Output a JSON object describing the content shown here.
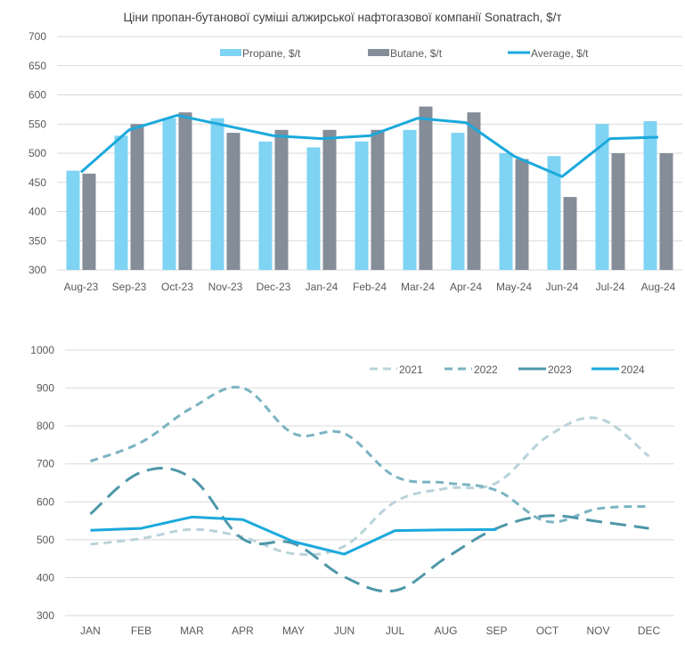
{
  "chart_data": [
    {
      "type": "bar",
      "title": "Ціни пропан-бутанової суміші алжирської нафтогазової компанії Sonatrach, $/т",
      "xlabel": "",
      "ylabel": "",
      "ylim": [
        300,
        700
      ],
      "yticks": [
        300,
        350,
        400,
        450,
        500,
        550,
        600,
        650,
        700
      ],
      "grid": true,
      "legend_position": "top",
      "categories": [
        "Aug-23",
        "Sep-23",
        "Oct-23",
        "Nov-23",
        "Dec-23",
        "Jan-24",
        "Feb-24",
        "Mar-24",
        "Apr-24",
        "May-24",
        "Jun-24",
        "Jul-24",
        "Aug-24"
      ],
      "series": [
        {
          "name": "Propane, $/t",
          "kind": "bar",
          "color": "#7fd3f3",
          "values": [
            470,
            530,
            560,
            560,
            520,
            510,
            520,
            540,
            535,
            500,
            495,
            550,
            555
          ]
        },
        {
          "name": "Butane, $/t",
          "kind": "bar",
          "color": "#848d98",
          "values": [
            465,
            550,
            570,
            535,
            540,
            540,
            540,
            580,
            570,
            490,
            425,
            500,
            500
          ]
        },
        {
          "name": "Average, $/t",
          "kind": "line",
          "color": "#1ba9dc",
          "values": [
            467.5,
            540,
            565,
            547.5,
            530,
            525,
            530,
            560,
            552.5,
            495,
            460,
            525,
            527.5
          ]
        }
      ]
    },
    {
      "type": "line",
      "title": "",
      "xlabel": "",
      "ylabel": "",
      "ylim": [
        300,
        1000
      ],
      "yticks": [
        300,
        400,
        500,
        600,
        700,
        800,
        900,
        1000
      ],
      "grid": true,
      "legend_position": "top-right",
      "categories": [
        "JAN",
        "FEB",
        "MAR",
        "APR",
        "MAY",
        "JUN",
        "JUL",
        "AUG",
        "SEP",
        "OCT",
        "NOV",
        "DEC"
      ],
      "series": [
        {
          "name": "2021",
          "style": "dashed",
          "color": "#b9d3da",
          "values": [
            488,
            503,
            527,
            507,
            463,
            483,
            600,
            635,
            650,
            772,
            820,
            720
          ]
        },
        {
          "name": "2022",
          "style": "dashed",
          "color": "#7ab3c2",
          "values": [
            707,
            757,
            848,
            900,
            780,
            780,
            667,
            650,
            630,
            548,
            582,
            588
          ]
        },
        {
          "name": "2023",
          "style": "long-dash",
          "color": "#4e97a8",
          "values": [
            568,
            678,
            662,
            502,
            490,
            402,
            366,
            452,
            530,
            563,
            548,
            530
          ]
        },
        {
          "name": "2024",
          "style": "solid",
          "color": "#1ba9dc",
          "values": [
            525,
            530,
            560,
            553,
            495,
            462,
            524,
            526,
            527
          ]
        }
      ]
    }
  ]
}
